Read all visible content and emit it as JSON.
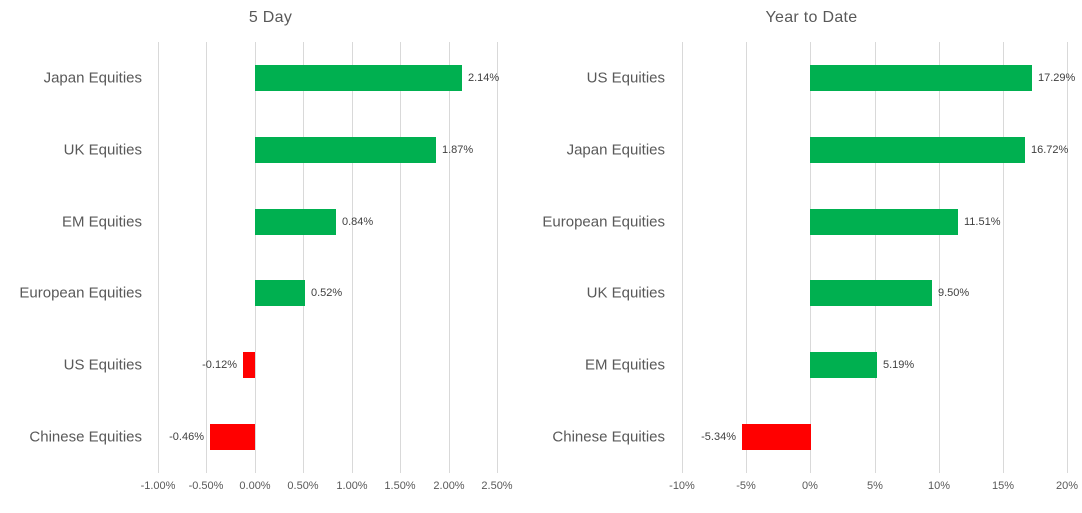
{
  "colors": {
    "background": "#FFFFFF",
    "positive_bar": "#00B050",
    "negative_bar": "#FF0000",
    "gridline": "#D9D9D9",
    "title_text": "#595959",
    "category_text": "#595959",
    "axis_text": "#595959",
    "data_label_text": "#404040"
  },
  "chart_data": [
    {
      "type": "bar",
      "orientation": "horizontal",
      "title": "5 Day",
      "grid": true,
      "legend_position": "none",
      "categories": [
        "Japan Equities",
        "UK Equities",
        "EM Equities",
        "European Equities",
        "US Equities",
        "Chinese Equities"
      ],
      "values": [
        2.14,
        1.87,
        0.84,
        0.52,
        -0.12,
        -0.46
      ],
      "data_labels": [
        "2.14%",
        "1.87%",
        "0.84%",
        "0.52%",
        "-0.12%",
        "-0.46%"
      ],
      "xlim": [
        -1.0,
        2.5
      ],
      "x_ticks": [
        -1.0,
        -0.5,
        0.0,
        0.5,
        1.0,
        1.5,
        2.0,
        2.5
      ],
      "x_tick_labels": [
        "-1.00%",
        "-0.50%",
        "0.00%",
        "0.50%",
        "1.00%",
        "1.50%",
        "2.00%",
        "2.50%"
      ]
    },
    {
      "type": "bar",
      "orientation": "horizontal",
      "title": "Year to Date",
      "grid": true,
      "legend_position": "none",
      "categories": [
        "US Equities",
        "Japan Equities",
        "European Equities",
        "UK Equities",
        "EM Equities",
        "Chinese Equities"
      ],
      "values": [
        17.29,
        16.72,
        11.51,
        9.5,
        5.19,
        -5.34
      ],
      "data_labels": [
        "17.29%",
        "16.72%",
        "11.51%",
        "9.50%",
        "5.19%",
        "-5.34%"
      ],
      "xlim": [
        -10,
        20
      ],
      "x_ticks": [
        -10,
        -5,
        0,
        5,
        10,
        15,
        20
      ],
      "x_tick_labels": [
        "-10%",
        "-5%",
        "0%",
        "5%",
        "10%",
        "15%",
        "20%"
      ]
    }
  ]
}
